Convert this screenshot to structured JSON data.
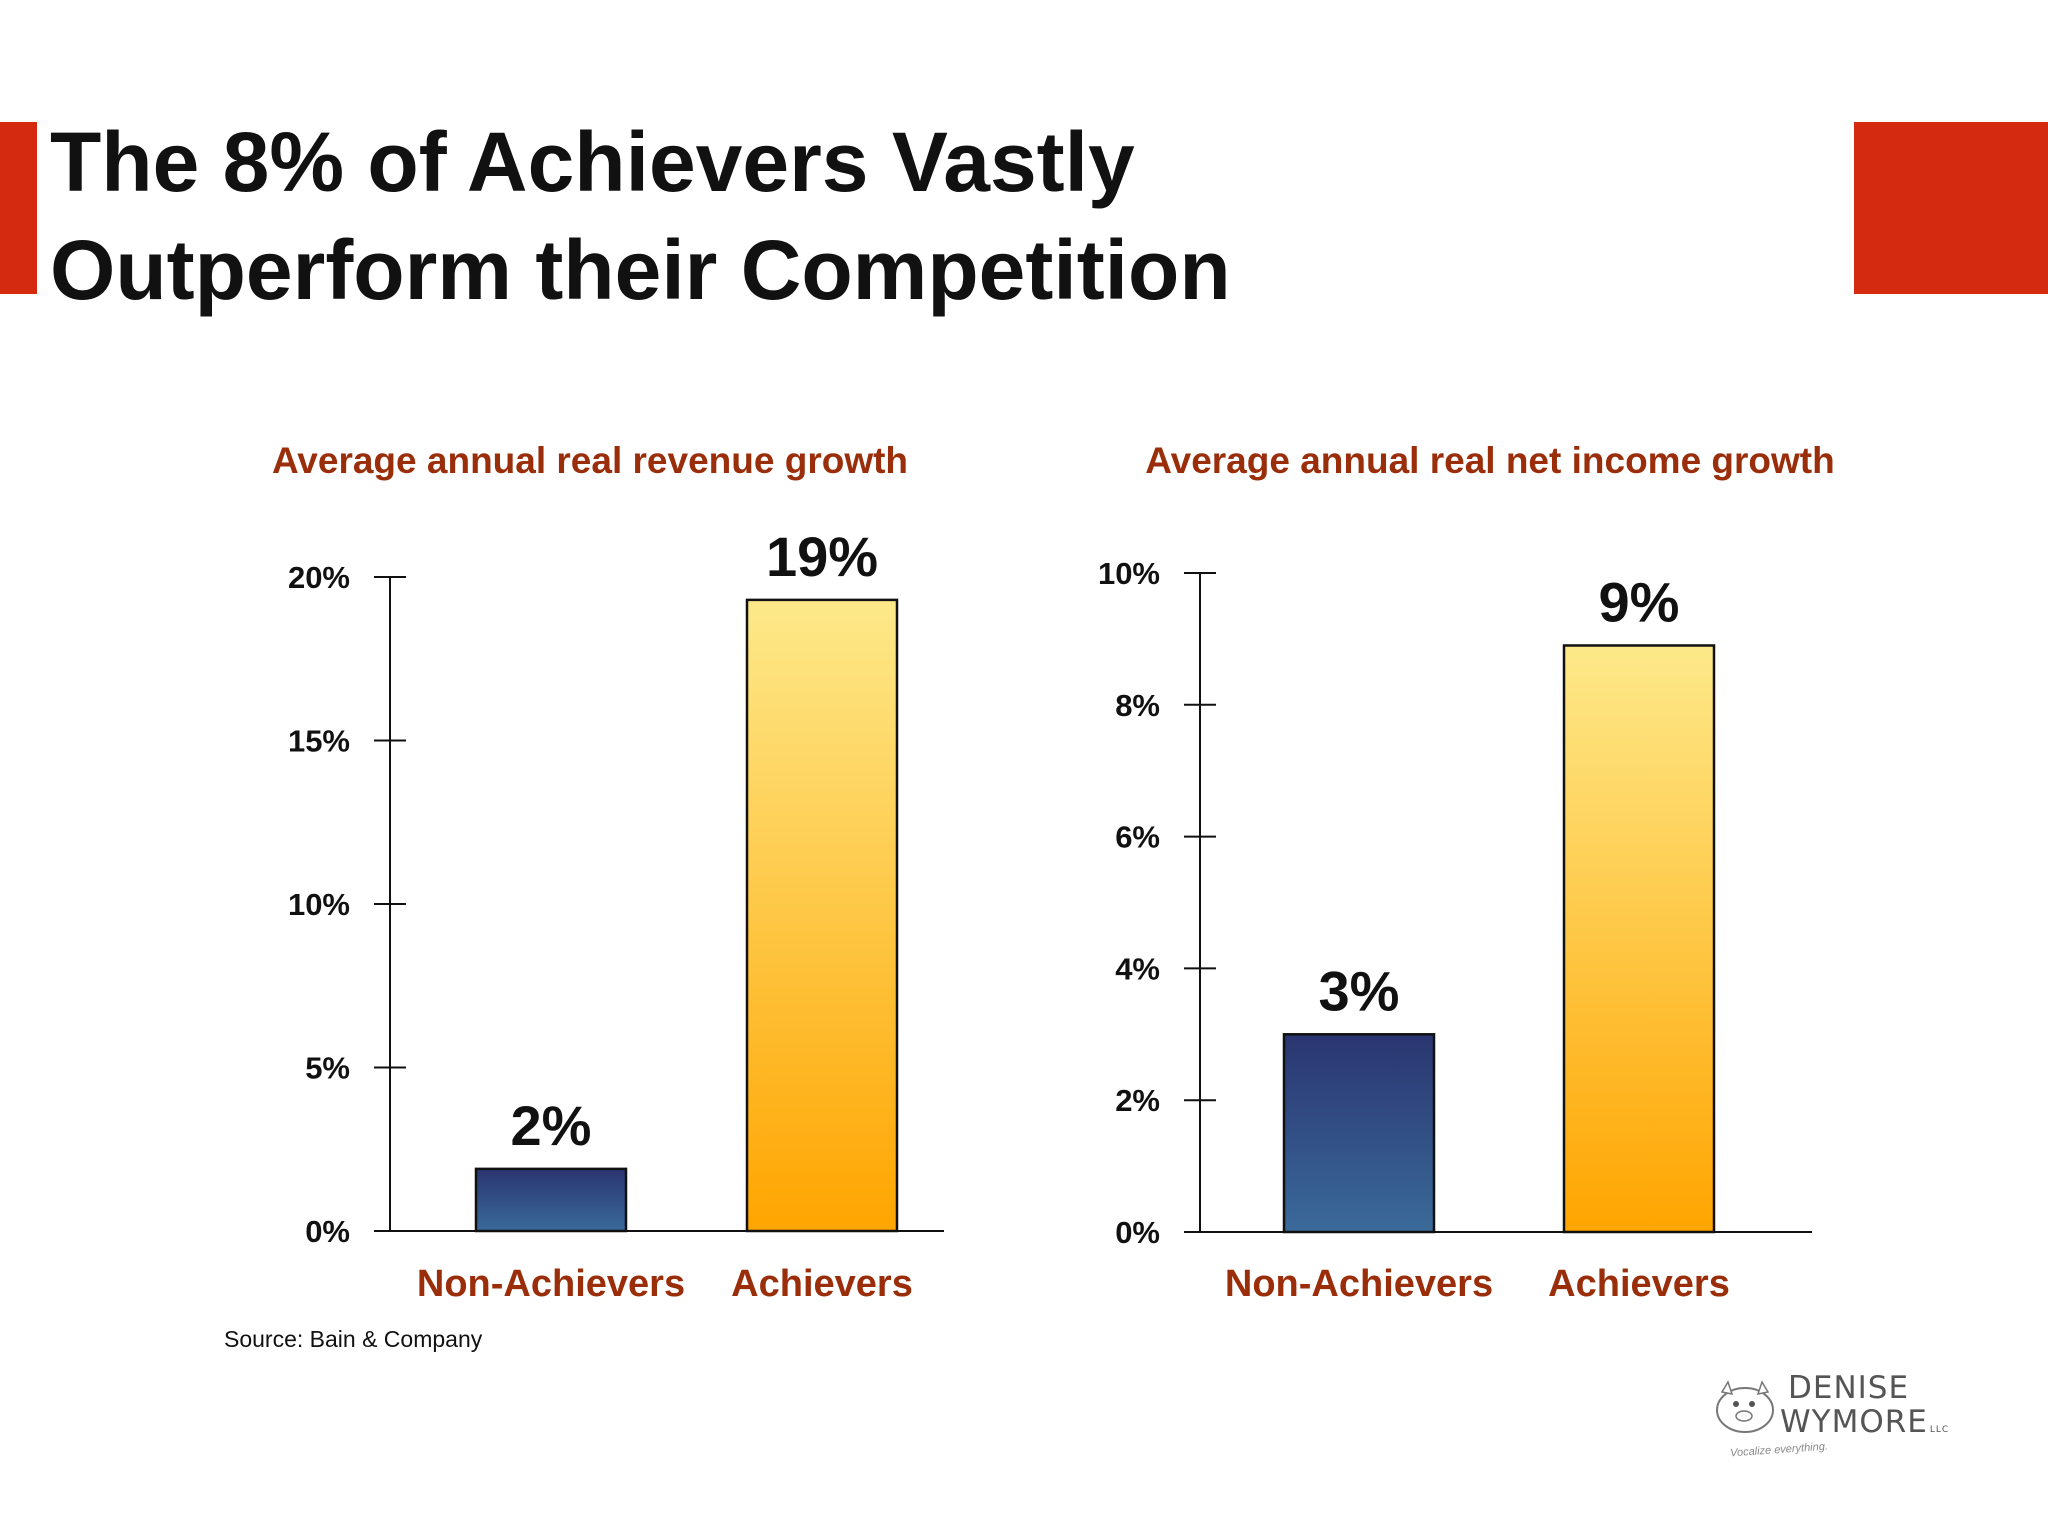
{
  "title": {
    "line1": "The 8% of Achievers Vastly",
    "line2": "Outperform their Competition"
  },
  "colors": {
    "accent": "#d42a10",
    "subtitle": "#9a2e0a",
    "non_achievers_top": "#2a3570",
    "non_achievers_bottom": "#3a6a9a",
    "achievers_top": "#fde98a",
    "achievers_bottom": "#ffa500"
  },
  "chart_data": [
    {
      "type": "bar",
      "title": "Average annual real revenue growth",
      "categories": [
        "Non-Achievers",
        "Achievers"
      ],
      "values": [
        1.9,
        19.3
      ],
      "data_labels": [
        "2%",
        "19%"
      ],
      "ylim": [
        0,
        20
      ],
      "yticks": [
        0,
        5,
        10,
        15,
        20
      ],
      "ytick_labels": [
        "0%",
        "5%",
        "10%",
        "15%",
        "20%"
      ],
      "grid": false
    },
    {
      "type": "bar",
      "title": "Average annual real net income growth",
      "categories": [
        "Non-Achievers",
        "Achievers"
      ],
      "values": [
        3.0,
        8.9
      ],
      "data_labels": [
        "3%",
        "9%"
      ],
      "ylim": [
        0,
        10
      ],
      "yticks": [
        0,
        2,
        4,
        6,
        8,
        10
      ],
      "ytick_labels": [
        "0%",
        "2%",
        "4%",
        "6%",
        "8%",
        "10%"
      ],
      "grid": false
    }
  ],
  "source": "Source: Bain & Company",
  "logo": {
    "line1": "DENISE",
    "line2": "WYMORE",
    "suffix": "LLC",
    "tagline": "Vocalize everything."
  }
}
